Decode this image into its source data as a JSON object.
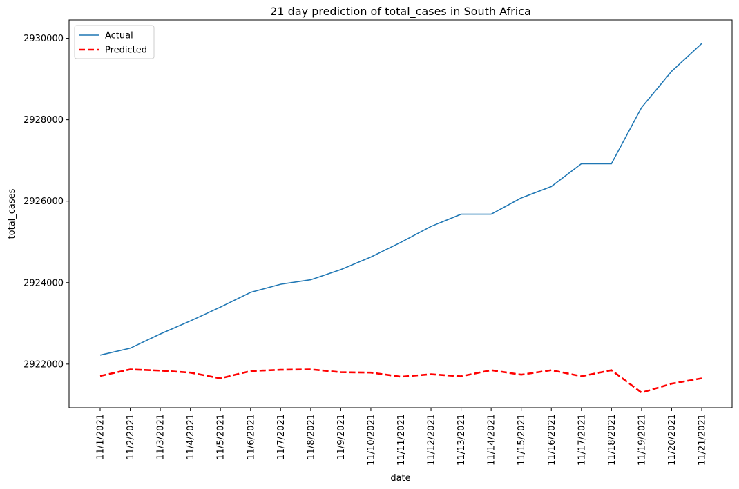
{
  "chart_data": {
    "type": "line",
    "title": "21 day prediction of total_cases in South Africa",
    "xlabel": "date",
    "ylabel": "total_cases",
    "categories": [
      "11/1/2021",
      "11/2/2021",
      "11/3/2021",
      "11/4/2021",
      "11/5/2021",
      "11/6/2021",
      "11/7/2021",
      "11/8/2021",
      "11/9/2021",
      "11/10/2021",
      "11/11/2021",
      "11/12/2021",
      "11/13/2021",
      "11/14/2021",
      "11/15/2021",
      "11/16/2021",
      "11/17/2021",
      "11/18/2021",
      "11/19/2021",
      "11/20/2021",
      "11/21/2021"
    ],
    "yticks": [
      2922000,
      2924000,
      2926000,
      2928000,
      2930000
    ],
    "ylim": [
      2920930,
      2930450
    ],
    "legend_position": "top-left",
    "grid": false,
    "series": [
      {
        "name": "Actual",
        "color": "#1f77b4",
        "style": "solid",
        "values": [
          2922220,
          2922390,
          2922740,
          2923060,
          2923400,
          2923760,
          2923960,
          2924070,
          2924320,
          2924630,
          2924990,
          2925380,
          2925680,
          2925680,
          2926080,
          2926360,
          2926920,
          2926920,
          2928300,
          2929190,
          2929870
        ]
      },
      {
        "name": "Predicted",
        "color": "#ff0000",
        "style": "dashed",
        "values": [
          2921710,
          2921870,
          2921840,
          2921790,
          2921650,
          2921830,
          2921860,
          2921870,
          2921800,
          2921790,
          2921690,
          2921750,
          2921700,
          2921850,
          2921740,
          2921850,
          2921700,
          2921850,
          2921300,
          2921520,
          2921650
        ]
      }
    ]
  }
}
